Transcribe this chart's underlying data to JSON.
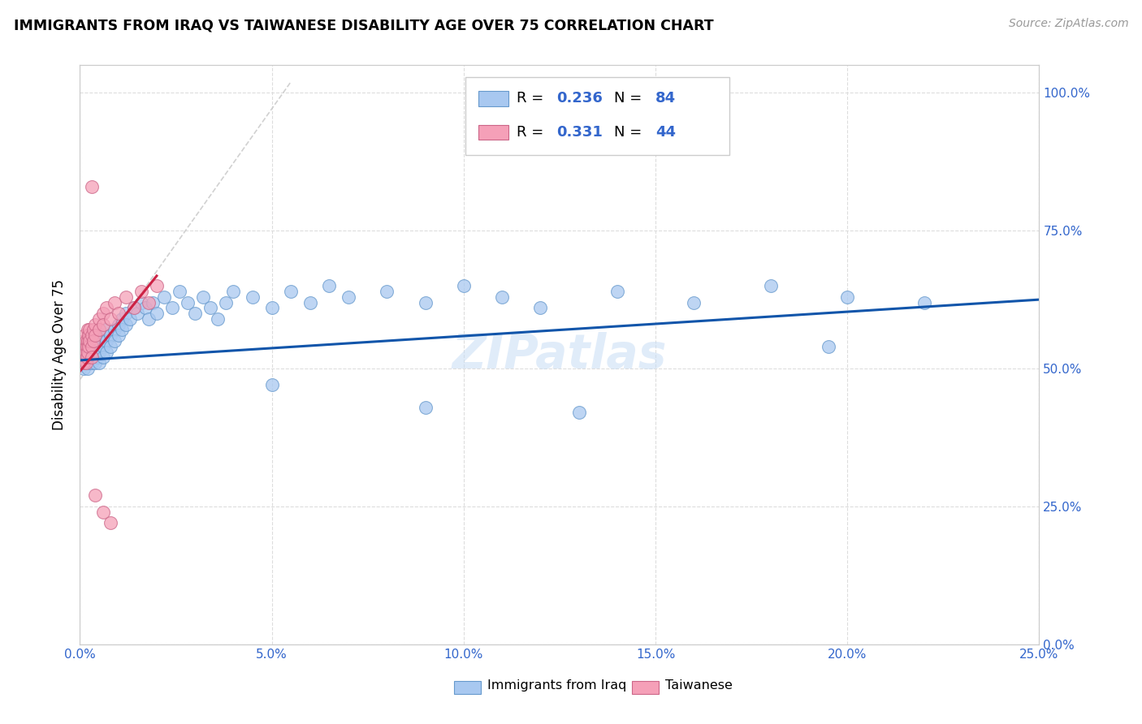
{
  "title": "IMMIGRANTS FROM IRAQ VS TAIWANESE DISABILITY AGE OVER 75 CORRELATION CHART",
  "source": "Source: ZipAtlas.com",
  "ylabel": "Disability Age Over 75",
  "legend_label_1": "Immigrants from Iraq",
  "legend_label_2": "Taiwanese",
  "R1": 0.236,
  "N1": 84,
  "R2": 0.331,
  "N2": 44,
  "color_blue": "#a8c8f0",
  "color_pink": "#f5a0b8",
  "color_blue_edge": "#6699cc",
  "color_pink_edge": "#cc6688",
  "color_trend_blue": "#1155aa",
  "color_trend_pink": "#cc2244",
  "xmin": 0.0,
  "xmax": 0.25,
  "ymin": 0.0,
  "ymax": 1.05,
  "yticks": [
    0.0,
    0.25,
    0.5,
    0.75,
    1.0
  ],
  "ytick_labels_right": [
    "0.0%",
    "25.0%",
    "50.0%",
    "75.0%",
    "100.0%"
  ],
  "xticks": [
    0.0,
    0.05,
    0.1,
    0.15,
    0.2,
    0.25
  ],
  "xtick_labels": [
    "0.0%",
    "5.0%",
    "10.0%",
    "15.0%",
    "20.0%",
    "25.0%"
  ],
  "watermark": "ZIPatlas",
  "background_color": "#ffffff",
  "grid_color": "#dddddd",
  "legend_R1_text": "R = ",
  "legend_R1_val": "0.236",
  "legend_N1_text": "  N = ",
  "legend_N1_val": "84",
  "legend_R2_text": "R = ",
  "legend_R2_val": "0.331",
  "legend_N2_text": "  N = ",
  "legend_N2_val": "44",
  "color_legend_text": "#3366cc",
  "iraq_x": [
    0.0008,
    0.001,
    0.001,
    0.0012,
    0.0012,
    0.0015,
    0.0015,
    0.0018,
    0.0018,
    0.002,
    0.002,
    0.002,
    0.0022,
    0.0022,
    0.0025,
    0.0025,
    0.003,
    0.003,
    0.003,
    0.003,
    0.0035,
    0.0035,
    0.004,
    0.004,
    0.004,
    0.0045,
    0.0045,
    0.005,
    0.005,
    0.005,
    0.006,
    0.006,
    0.006,
    0.007,
    0.007,
    0.007,
    0.008,
    0.008,
    0.009,
    0.009,
    0.01,
    0.01,
    0.011,
    0.011,
    0.012,
    0.012,
    0.013,
    0.014,
    0.015,
    0.016,
    0.017,
    0.018,
    0.019,
    0.02,
    0.022,
    0.024,
    0.026,
    0.028,
    0.03,
    0.032,
    0.034,
    0.036,
    0.038,
    0.04,
    0.045,
    0.05,
    0.055,
    0.06,
    0.065,
    0.07,
    0.08,
    0.09,
    0.1,
    0.11,
    0.12,
    0.14,
    0.16,
    0.18,
    0.2,
    0.22,
    0.05,
    0.09,
    0.13,
    0.195
  ],
  "iraq_y": [
    0.52,
    0.5,
    0.54,
    0.51,
    0.53,
    0.52,
    0.55,
    0.51,
    0.53,
    0.52,
    0.54,
    0.5,
    0.53,
    0.55,
    0.51,
    0.54,
    0.53,
    0.55,
    0.51,
    0.52,
    0.54,
    0.56,
    0.53,
    0.55,
    0.51,
    0.54,
    0.52,
    0.53,
    0.55,
    0.51,
    0.54,
    0.56,
    0.52,
    0.55,
    0.57,
    0.53,
    0.56,
    0.54,
    0.57,
    0.55,
    0.58,
    0.56,
    0.59,
    0.57,
    0.6,
    0.58,
    0.59,
    0.61,
    0.6,
    0.62,
    0.61,
    0.59,
    0.62,
    0.6,
    0.63,
    0.61,
    0.64,
    0.62,
    0.6,
    0.63,
    0.61,
    0.59,
    0.62,
    0.64,
    0.63,
    0.61,
    0.64,
    0.62,
    0.65,
    0.63,
    0.64,
    0.62,
    0.65,
    0.63,
    0.61,
    0.64,
    0.62,
    0.65,
    0.63,
    0.62,
    0.47,
    0.43,
    0.42,
    0.54
  ],
  "taiwan_x": [
    0.0005,
    0.0005,
    0.0008,
    0.001,
    0.001,
    0.001,
    0.0012,
    0.0012,
    0.0015,
    0.0015,
    0.0015,
    0.0018,
    0.0018,
    0.002,
    0.002,
    0.002,
    0.0022,
    0.0022,
    0.0025,
    0.0025,
    0.003,
    0.003,
    0.003,
    0.0035,
    0.0035,
    0.004,
    0.004,
    0.005,
    0.005,
    0.006,
    0.006,
    0.007,
    0.008,
    0.009,
    0.01,
    0.012,
    0.014,
    0.016,
    0.018,
    0.02,
    0.003,
    0.004,
    0.006,
    0.008
  ],
  "taiwan_y": [
    0.52,
    0.54,
    0.53,
    0.55,
    0.51,
    0.53,
    0.54,
    0.56,
    0.53,
    0.55,
    0.51,
    0.54,
    0.52,
    0.55,
    0.57,
    0.53,
    0.56,
    0.54,
    0.57,
    0.55,
    0.56,
    0.54,
    0.52,
    0.57,
    0.55,
    0.58,
    0.56,
    0.59,
    0.57,
    0.6,
    0.58,
    0.61,
    0.59,
    0.62,
    0.6,
    0.63,
    0.61,
    0.64,
    0.62,
    0.65,
    0.83,
    0.27,
    0.24,
    0.22
  ]
}
